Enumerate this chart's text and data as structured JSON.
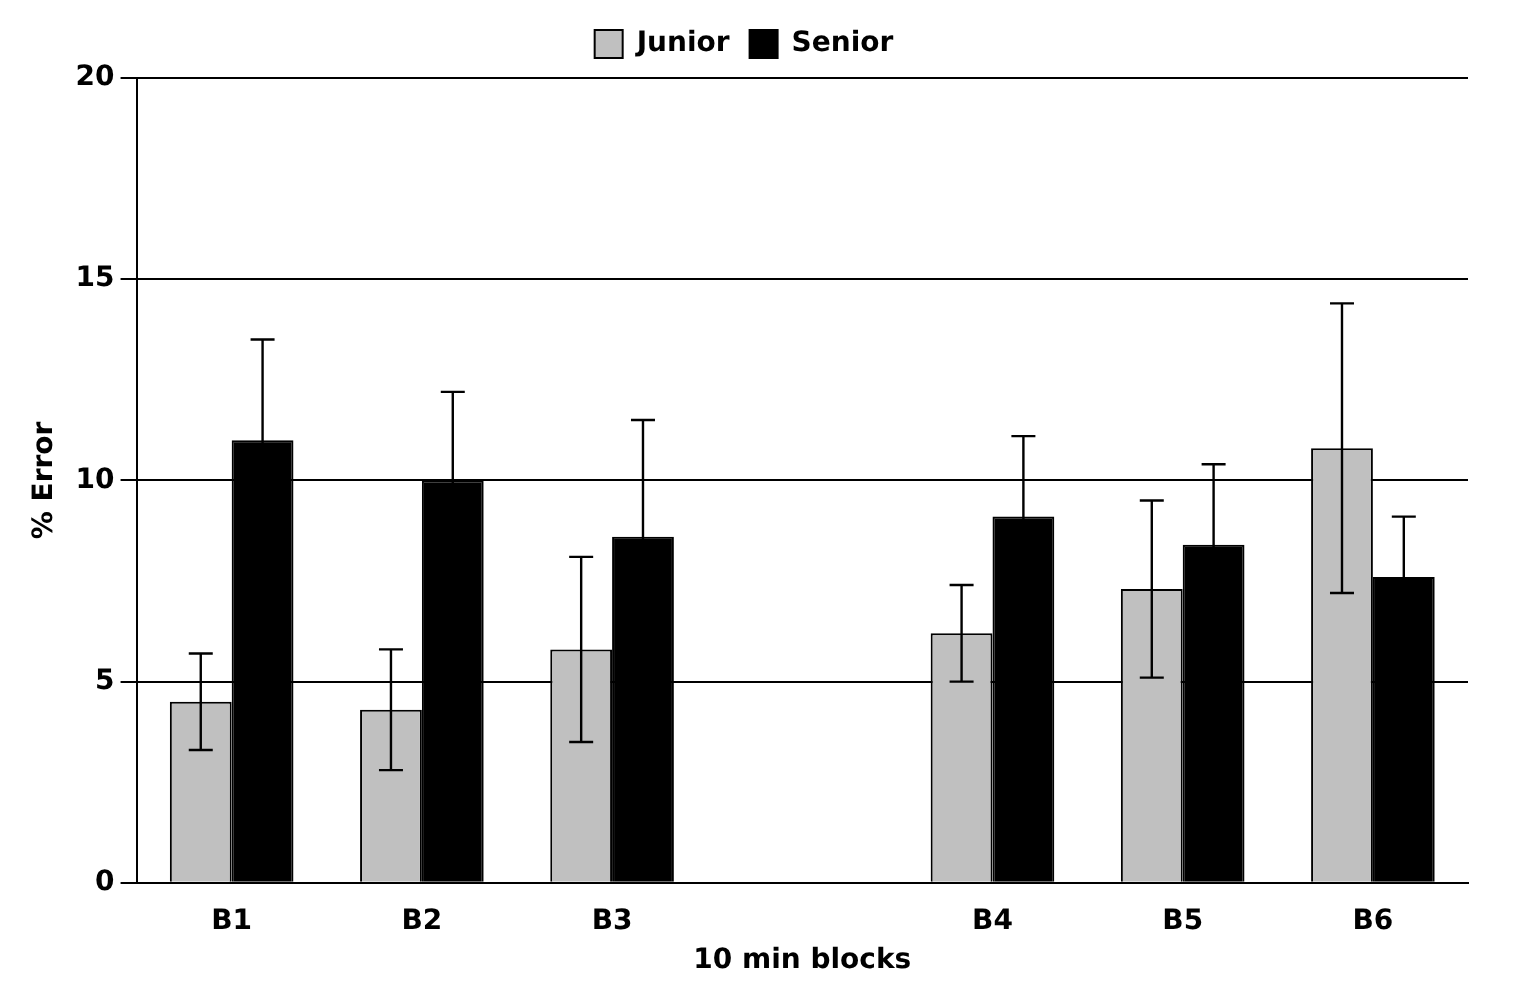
{
  "chart_data": {
    "type": "bar",
    "xlabel": "10 min blocks",
    "ylabel": "% Error",
    "categories": [
      "B1",
      "B2",
      "B3",
      null,
      "B4",
      "B5",
      "B6"
    ],
    "series": [
      {
        "name": "Junior",
        "color": "#c0c0c0",
        "values": [
          4.5,
          4.3,
          5.8,
          null,
          6.2,
          7.3,
          10.8
        ],
        "errors": [
          1.2,
          1.5,
          2.3,
          null,
          1.2,
          2.2,
          3.6
        ]
      },
      {
        "name": "Senior",
        "color": "#000000",
        "values": [
          11.0,
          10.0,
          8.6,
          null,
          9.1,
          8.4,
          7.6
        ],
        "errors": [
          2.5,
          2.2,
          2.9,
          null,
          2.0,
          2.0,
          1.5
        ]
      }
    ],
    "ylim": [
      0,
      20
    ],
    "yticks": [
      0,
      5,
      10,
      15,
      20
    ],
    "grid": "y",
    "legend": "top"
  }
}
